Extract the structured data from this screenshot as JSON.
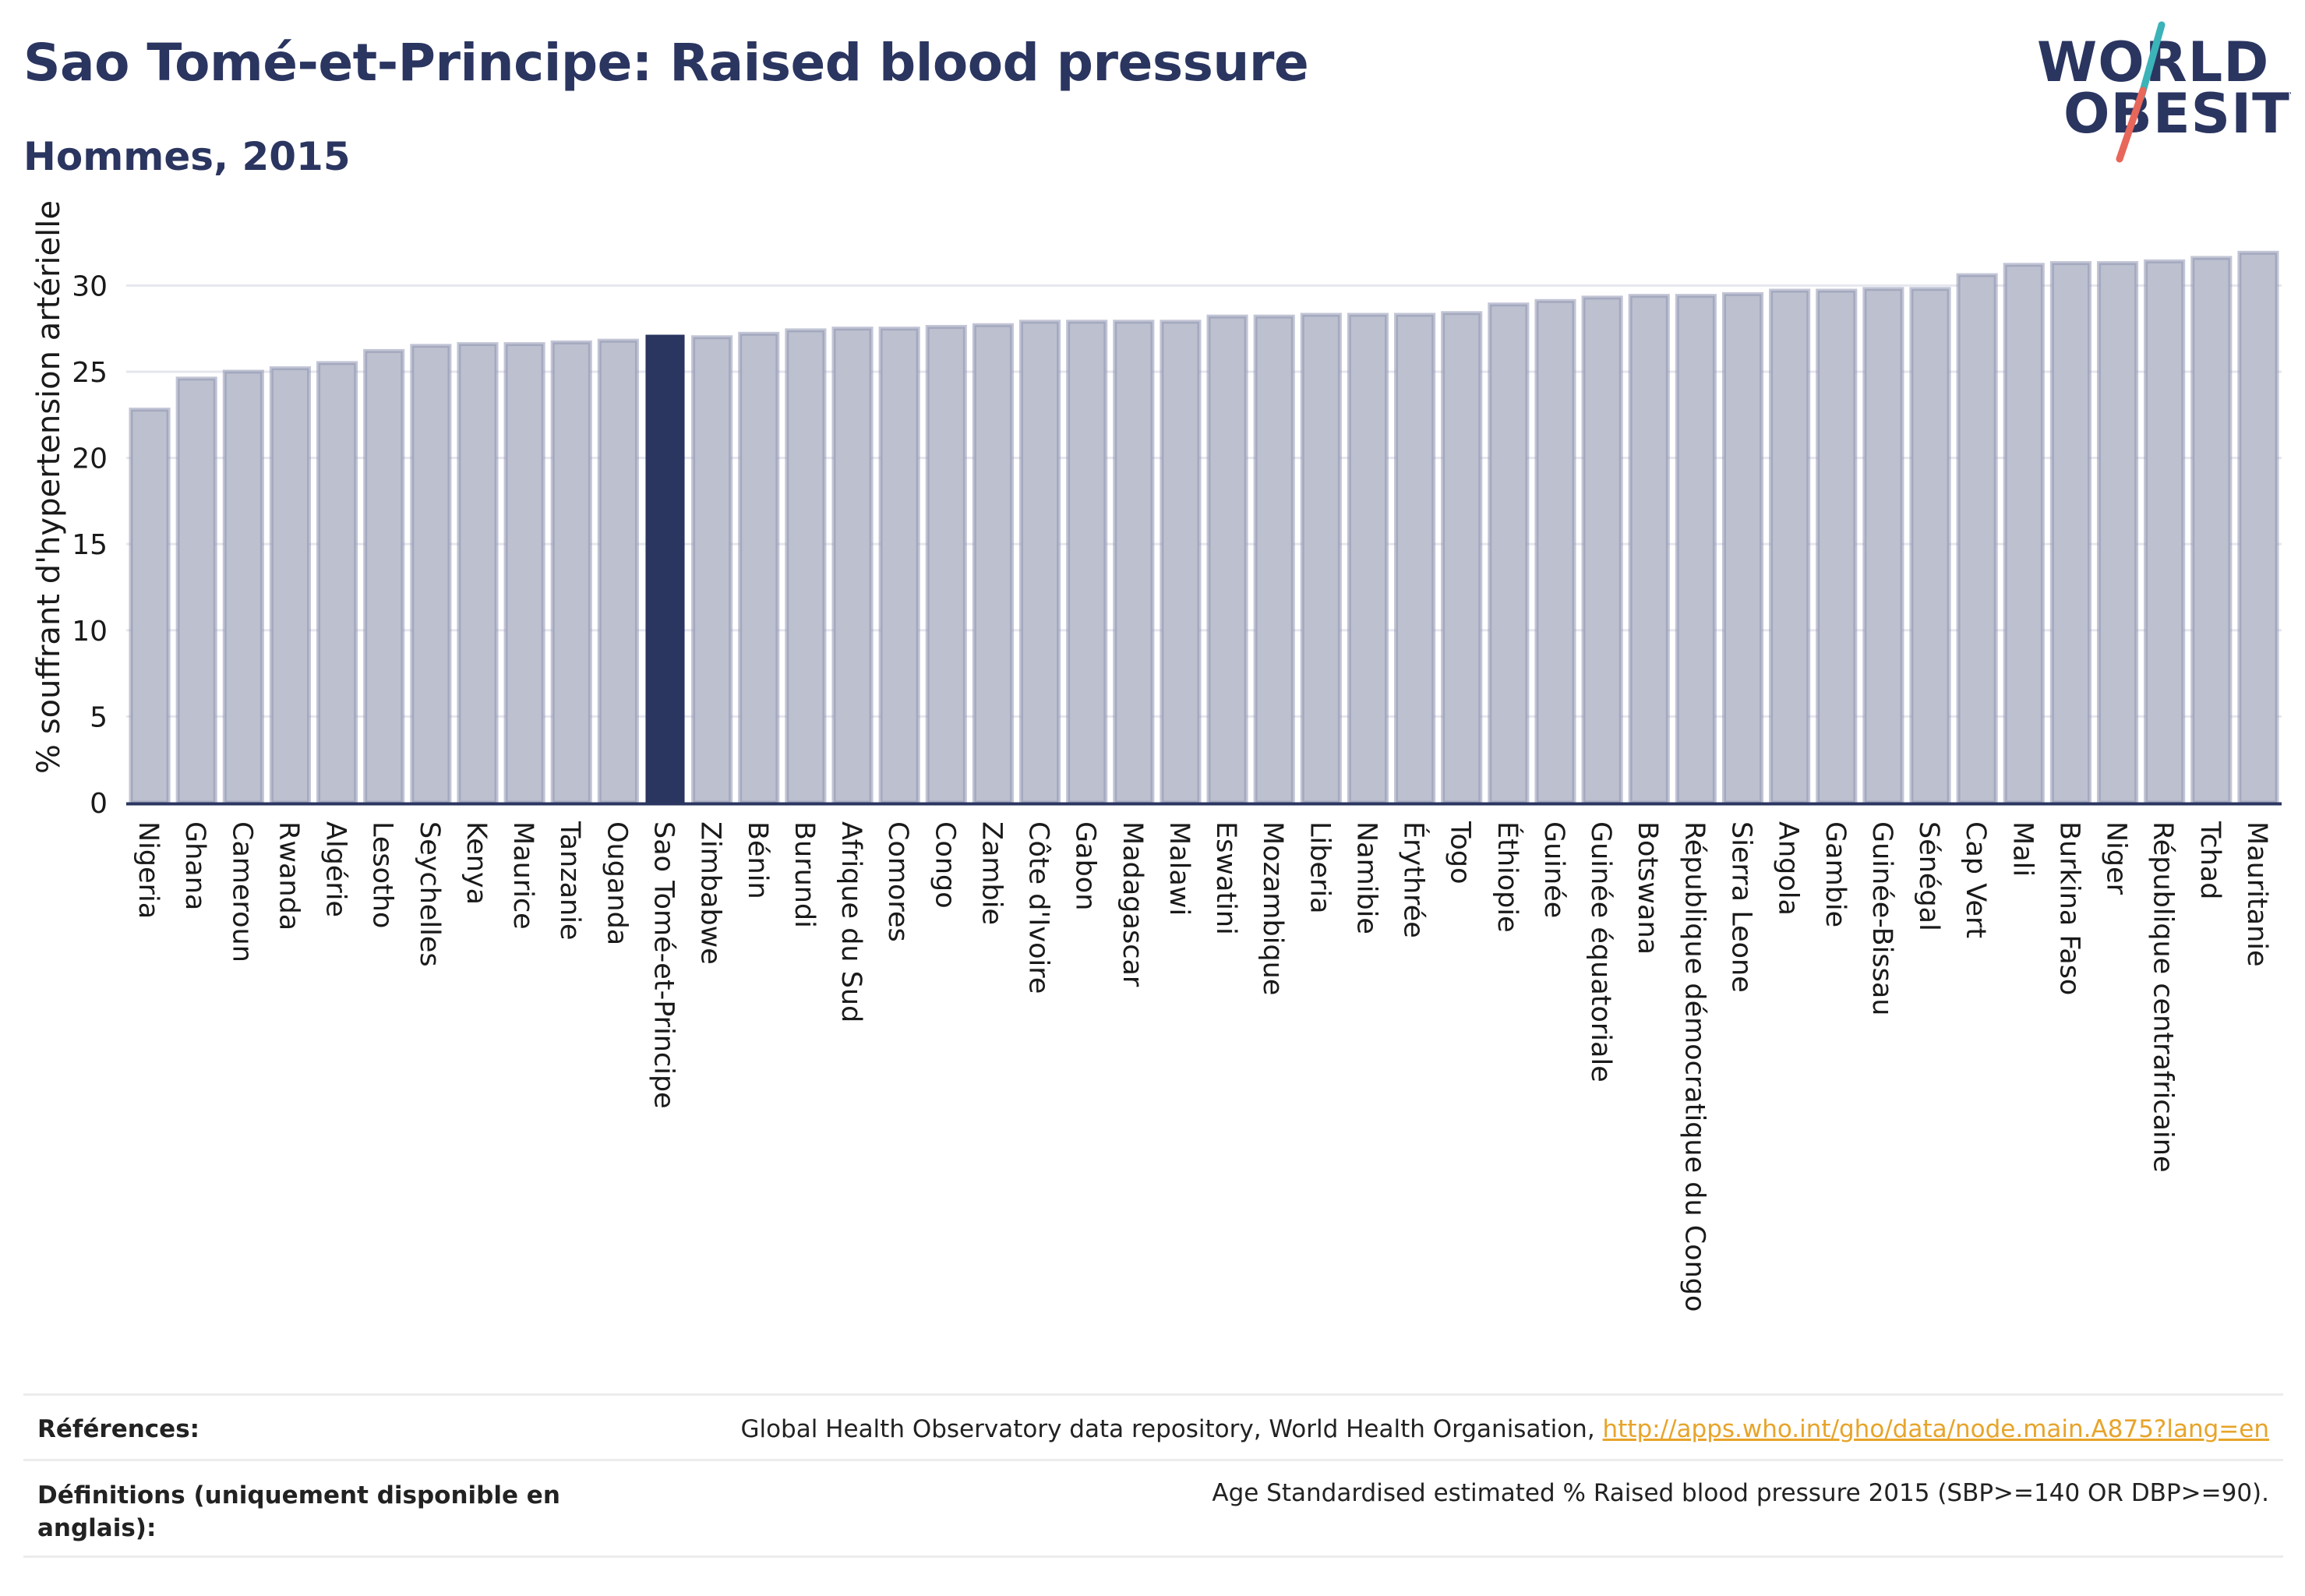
{
  "header": {
    "title": "Sao Tomé-et-Principe: Raised blood pressure",
    "subtitle": "Hommes, 2015"
  },
  "logo": {
    "line1": "WORLD",
    "line2": "OBESITY",
    "colors": {
      "text": "#2a3560",
      "slash_teal": "#3bb3b8",
      "slash_red": "#e8665a"
    }
  },
  "colors": {
    "bar": "#bcc0cf",
    "bar_border": "#8f96b2",
    "highlight": "#2a3560",
    "axis": "#2a3560",
    "grid": "#e6e7ee"
  },
  "chart_data": {
    "type": "bar",
    "title": "Sao Tomé-et-Principe: Raised blood pressure",
    "subtitle": "Hommes, 2015",
    "xlabel": "",
    "ylabel": "% souffrant d'hypertension artérielle",
    "ylim": [
      0,
      33
    ],
    "yticks": [
      0,
      5,
      10,
      15,
      20,
      25,
      30
    ],
    "grid": true,
    "highlight": "Sao Tomé-et-Principe",
    "categories": [
      "Nigeria",
      "Ghana",
      "Cameroun",
      "Rwanda",
      "Algérie",
      "Lesotho",
      "Seychelles",
      "Kenya",
      "Maurice",
      "Tanzanie",
      "Ouganda",
      "Sao Tomé-et-Principe",
      "Zimbabwe",
      "Bénin",
      "Burundi",
      "Afrique du Sud",
      "Comores",
      "Congo",
      "Zambie",
      "Côte d'Ivoire",
      "Gabon",
      "Madagascar",
      "Malawi",
      "Eswatini",
      "Mozambique",
      "Liberia",
      "Namibie",
      "Érythrée",
      "Togo",
      "Éthiopie",
      "Guinée",
      "Guinée équatoriale",
      "Botswana",
      "République démocratique du Congo",
      "Sierra Leone",
      "Angola",
      "Gambie",
      "Guinée-Bissau",
      "Sénégal",
      "Cap Vert",
      "Mali",
      "Burkina Faso",
      "Niger",
      "République centrafricaine",
      "Tchad",
      "Mauritanie"
    ],
    "values": [
      22.8,
      24.6,
      25.0,
      25.2,
      25.5,
      26.2,
      26.5,
      26.6,
      26.6,
      26.7,
      26.8,
      27.1,
      27.0,
      27.2,
      27.4,
      27.5,
      27.5,
      27.6,
      27.7,
      27.9,
      27.9,
      27.9,
      27.9,
      28.2,
      28.2,
      28.3,
      28.3,
      28.3,
      28.4,
      28.9,
      29.1,
      29.3,
      29.4,
      29.4,
      29.5,
      29.7,
      29.7,
      29.8,
      29.8,
      30.6,
      31.2,
      31.3,
      31.3,
      31.4,
      31.6,
      31.9
    ]
  },
  "footer": {
    "references_label": "Références:",
    "references_text": "Global Health Observatory data repository, World Health Organisation,",
    "references_link": "http://apps.who.int/gho/data/node.main.A875?lang=en",
    "definitions_label_line1": "Définitions (uniquement disponible en",
    "definitions_label_line2": "anglais):",
    "definitions_text": "Age Standardised estimated % Raised blood pressure 2015 (SBP>=140 OR DBP>=90)."
  }
}
